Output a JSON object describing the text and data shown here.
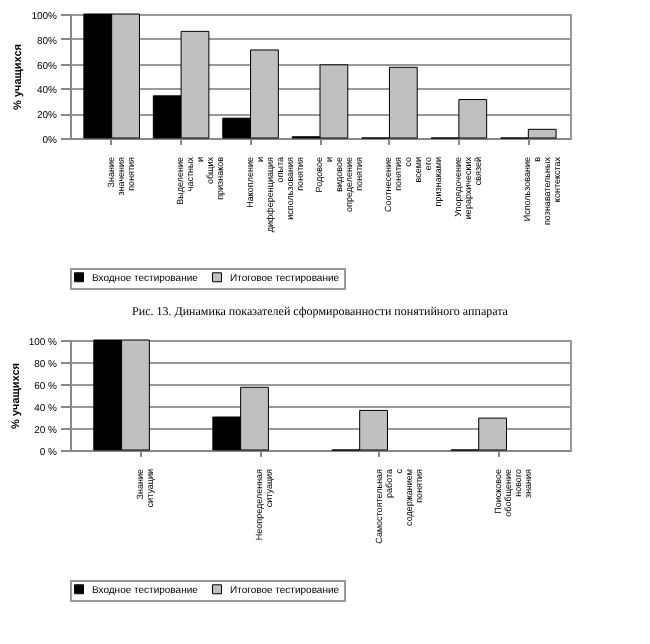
{
  "chart_data": [
    {
      "type": "bar",
      "ylabel": "% учащихся",
      "categories": [
        "Знание значения понятия",
        "Выделение частных и общих признаков",
        "Накопление и дифференциация опыта использования понятия",
        "Родовое и видовое определение понятия",
        "Соотнесение понятия со всеми его признаками",
        "Упорядочение иерархических связей",
        "Использование в познавательных контекстах"
      ],
      "series": [
        {
          "name": "Входное тестирование",
          "color": "#000000",
          "values": [
            100,
            34,
            16,
            1,
            0,
            0,
            0
          ]
        },
        {
          "name": "Итоговое тестирование",
          "color": "#c0c0c0",
          "values": [
            100,
            86,
            71,
            59,
            57,
            31,
            7
          ]
        }
      ],
      "ylim": [
        0,
        100
      ],
      "yticks": [
        {
          "value": 0,
          "label": "0%"
        },
        {
          "value": 20,
          "label": "20%"
        },
        {
          "value": 40,
          "label": "40%"
        },
        {
          "value": 60,
          "label": "60%"
        },
        {
          "value": 80,
          "label": "80%"
        },
        {
          "value": 100,
          "label": "100%"
        }
      ],
      "grid": "y",
      "legend": "bottom",
      "annotations": [
        "Рис. 13. Динамика показателей сформированности понятийного аппарата"
      ]
    },
    {
      "type": "bar",
      "ylabel": "% учащихся",
      "categories": [
        "Знание ситуации",
        "Неопределенная ситуация",
        "Самостоятельная работа с содержанием понятия",
        "Поисковое обобщение нового знания"
      ],
      "series": [
        {
          "name": "Входное тестирование",
          "color": "#000000",
          "values": [
            100,
            30,
            0,
            0
          ]
        },
        {
          "name": "Итоговое тестирование",
          "color": "#c0c0c0",
          "values": [
            100,
            57,
            36,
            29
          ]
        }
      ],
      "ylim": [
        0,
        100
      ],
      "yticks": [
        {
          "value": 0,
          "label": "0 %"
        },
        {
          "value": 20,
          "label": "20 %"
        },
        {
          "value": 40,
          "label": "40 %"
        },
        {
          "value": 60,
          "label": "60 %"
        },
        {
          "value": 80,
          "label": "80 %"
        },
        {
          "value": 100,
          "label": "100 %"
        }
      ],
      "grid": "y",
      "legend": "bottom"
    }
  ]
}
